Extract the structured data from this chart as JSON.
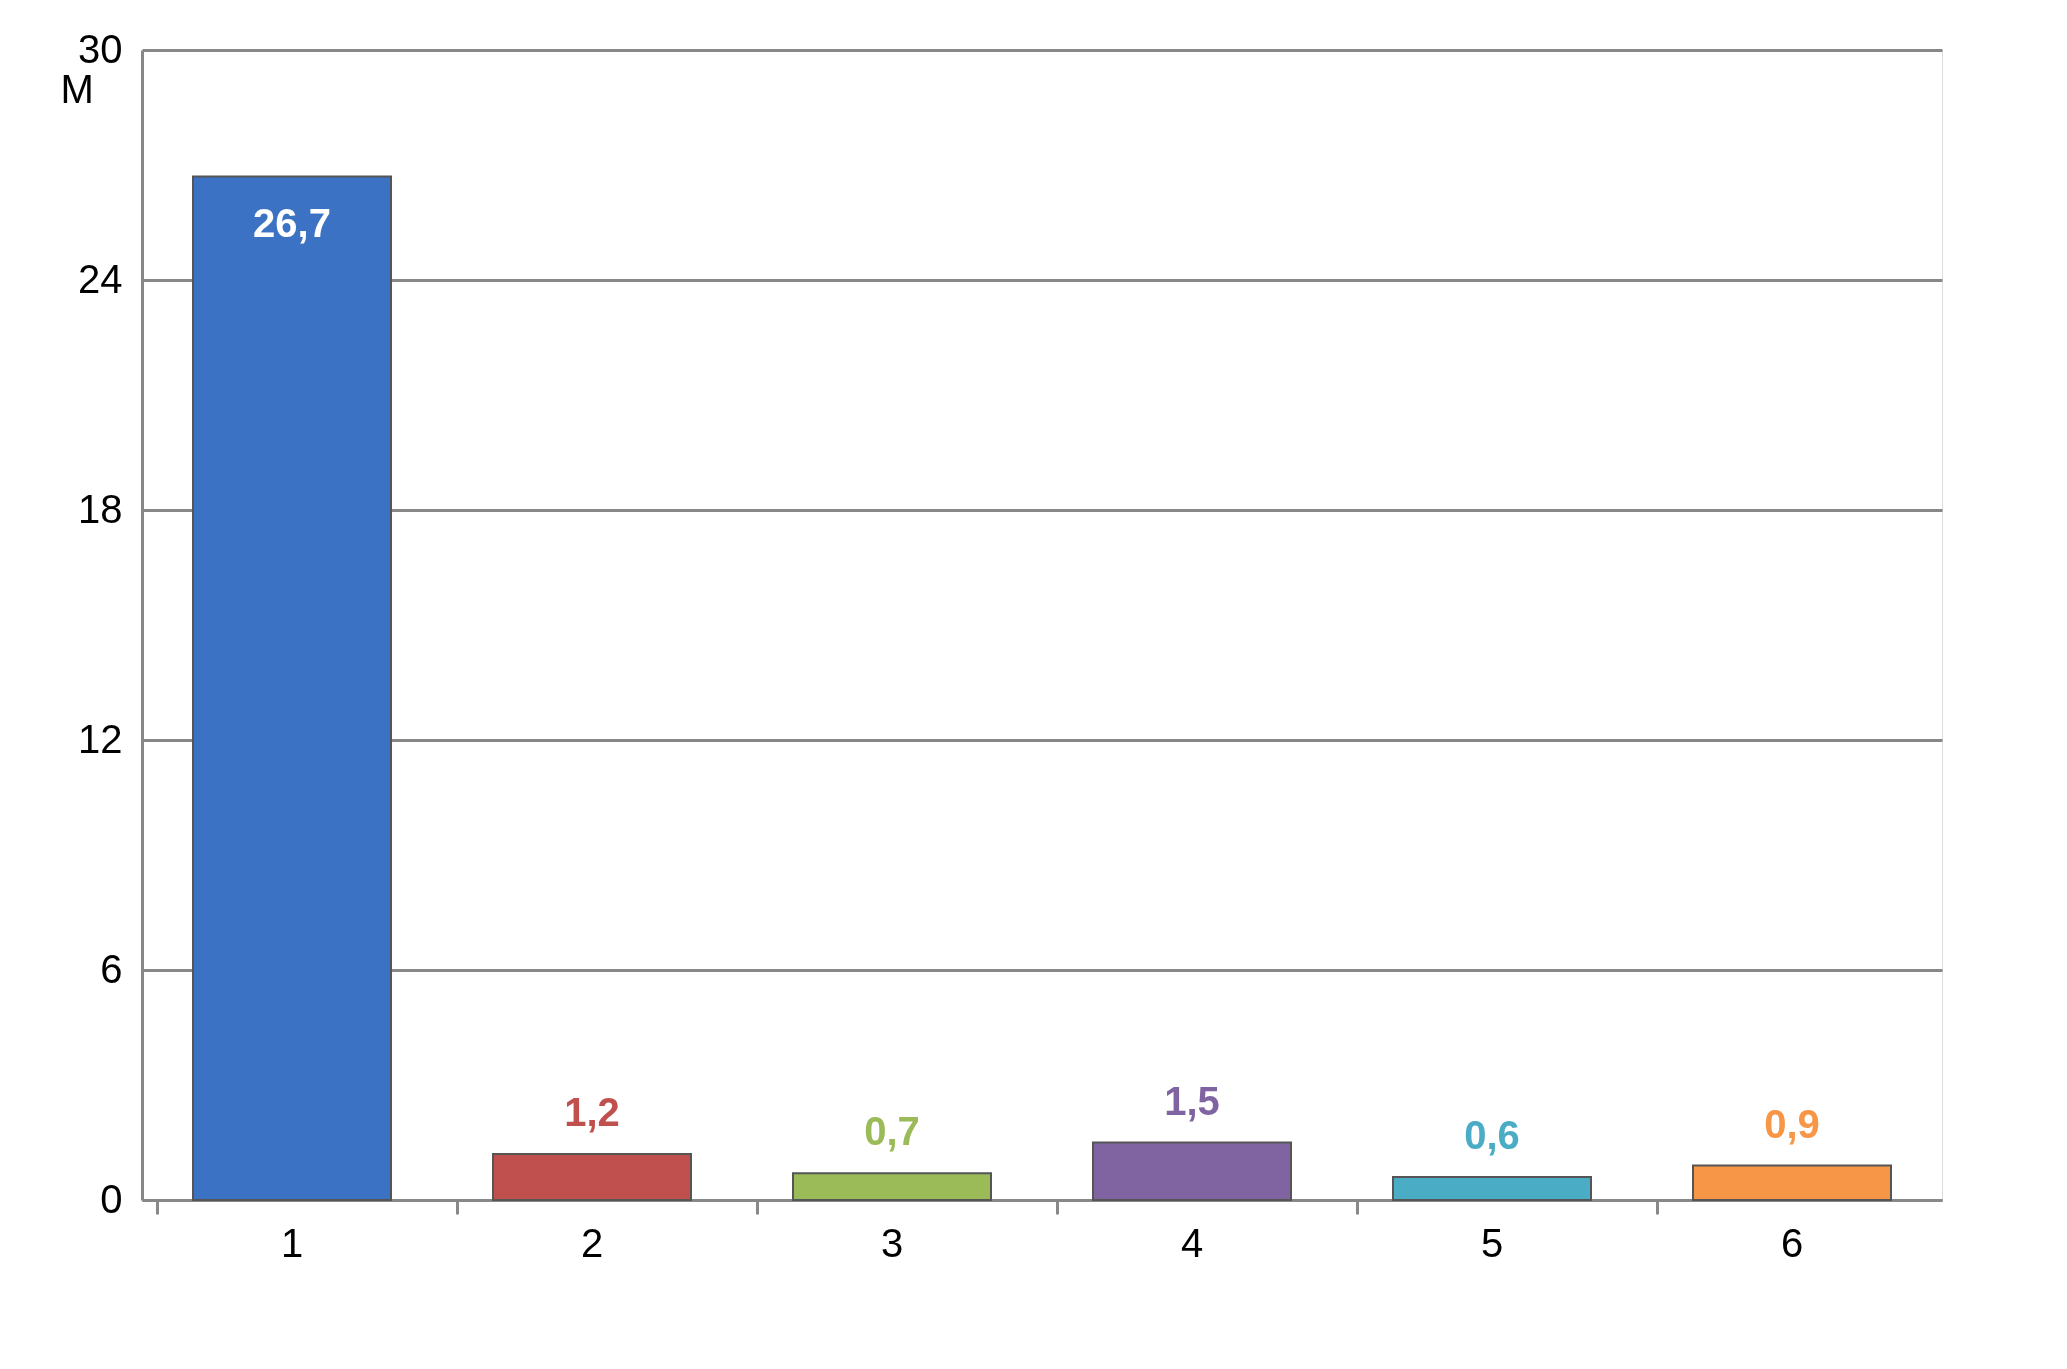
{
  "chart_data": {
    "type": "bar",
    "ylabel": "M",
    "categories": [
      "1",
      "2",
      "3",
      "4",
      "5",
      "6"
    ],
    "values": [
      26.7,
      1.2,
      0.7,
      1.5,
      0.6,
      0.9
    ],
    "colors": [
      "#3b72c4",
      "#c0504d",
      "#9bbb59",
      "#8064a2",
      "#4bacc6",
      "#f79646"
    ],
    "value_labels": [
      "26,7",
      "1,2",
      "0,7",
      "1,5",
      "0,6",
      "0,9"
    ],
    "ylim": [
      0,
      30
    ],
    "yticks": [
      0,
      6,
      12,
      18,
      24,
      30
    ],
    "grid": "y"
  }
}
